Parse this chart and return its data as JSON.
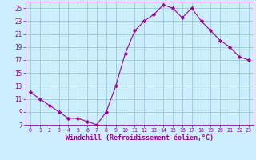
{
  "x": [
    0,
    1,
    2,
    3,
    4,
    5,
    6,
    7,
    8,
    9,
    10,
    11,
    12,
    13,
    14,
    15,
    16,
    17,
    18,
    19,
    20,
    21,
    22,
    23
  ],
  "y": [
    12,
    11,
    10,
    9,
    8,
    8,
    7.5,
    7,
    9,
    13,
    18,
    21.5,
    23,
    24,
    25.5,
    25,
    23.5,
    25,
    23,
    21.5,
    20,
    19,
    17.5,
    17
  ],
  "line_color": "#990099",
  "marker": "D",
  "marker_size": 2.2,
  "bg_color": "#cceeff",
  "grid_color": "#99cccc",
  "xlabel": "Windchill (Refroidissement éolien,°C)",
  "xlabel_color": "#990099",
  "tick_color": "#990099",
  "ylim": [
    7,
    26
  ],
  "xlim": [
    -0.5,
    23.5
  ],
  "yticks": [
    7,
    9,
    11,
    13,
    15,
    17,
    19,
    21,
    23,
    25
  ],
  "xticks": [
    0,
    1,
    2,
    3,
    4,
    5,
    6,
    7,
    8,
    9,
    10,
    11,
    12,
    13,
    14,
    15,
    16,
    17,
    18,
    19,
    20,
    21,
    22,
    23
  ],
  "figsize": [
    3.2,
    2.0
  ],
  "dpi": 100
}
